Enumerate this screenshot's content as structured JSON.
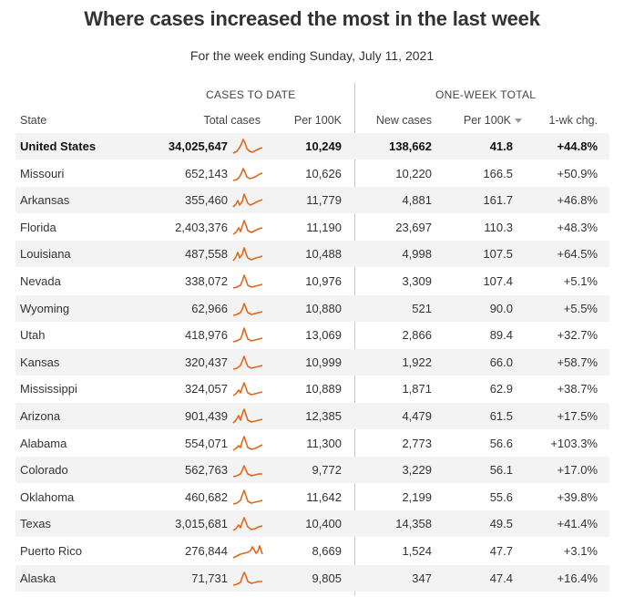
{
  "title": "Where cases increased the most in the last week",
  "subtitle": "For the week ending Sunday, July 11, 2021",
  "group_headers": {
    "cases_to_date": "CASES TO DATE",
    "one_week_total": "ONE-WEEK TOTAL"
  },
  "columns": {
    "state": "State",
    "total_cases": "Total cases",
    "per100k_total": "Per 100K",
    "new_cases": "New cases",
    "per100k_week": "Per 100K",
    "wk_chg": "1-wk chg."
  },
  "accent_color": "#e0671c",
  "chart_data": {
    "type": "table",
    "title": "Where cases increased the most in the last week",
    "subtitle": "For the week ending Sunday, July 11, 2021",
    "columns": [
      "State",
      "Total cases",
      "Per 100K",
      "New cases",
      "Per 100K",
      "1-wk chg."
    ],
    "sorted_by": "One-week Per 100K (descending)",
    "rows": [
      {
        "state": "United States",
        "total_cases": "34,025,647",
        "per100k_total": "10,249",
        "new_cases": "138,662",
        "per100k_week": "41.8",
        "wk_chg": "+44.8%"
      },
      {
        "state": "Missouri",
        "total_cases": "652,143",
        "per100k_total": "10,626",
        "new_cases": "10,220",
        "per100k_week": "166.5",
        "wk_chg": "+50.9%"
      },
      {
        "state": "Arkansas",
        "total_cases": "355,460",
        "per100k_total": "11,779",
        "new_cases": "4,881",
        "per100k_week": "161.7",
        "wk_chg": "+46.8%"
      },
      {
        "state": "Florida",
        "total_cases": "2,403,376",
        "per100k_total": "11,190",
        "new_cases": "23,697",
        "per100k_week": "110.3",
        "wk_chg": "+48.3%"
      },
      {
        "state": "Louisiana",
        "total_cases": "487,558",
        "per100k_total": "10,488",
        "new_cases": "4,998",
        "per100k_week": "107.5",
        "wk_chg": "+64.5%"
      },
      {
        "state": "Nevada",
        "total_cases": "338,072",
        "per100k_total": "10,976",
        "new_cases": "3,309",
        "per100k_week": "107.4",
        "wk_chg": "+5.1%"
      },
      {
        "state": "Wyoming",
        "total_cases": "62,966",
        "per100k_total": "10,880",
        "new_cases": "521",
        "per100k_week": "90.0",
        "wk_chg": "+5.5%"
      },
      {
        "state": "Utah",
        "total_cases": "418,976",
        "per100k_total": "13,069",
        "new_cases": "2,866",
        "per100k_week": "89.4",
        "wk_chg": "+32.7%"
      },
      {
        "state": "Kansas",
        "total_cases": "320,437",
        "per100k_total": "10,999",
        "new_cases": "1,922",
        "per100k_week": "66.0",
        "wk_chg": "+58.7%"
      },
      {
        "state": "Mississippi",
        "total_cases": "324,057",
        "per100k_total": "10,889",
        "new_cases": "1,871",
        "per100k_week": "62.9",
        "wk_chg": "+38.7%"
      },
      {
        "state": "Arizona",
        "total_cases": "901,439",
        "per100k_total": "12,385",
        "new_cases": "4,479",
        "per100k_week": "61.5",
        "wk_chg": "+17.5%"
      },
      {
        "state": "Alabama",
        "total_cases": "554,071",
        "per100k_total": "11,300",
        "new_cases": "2,773",
        "per100k_week": "56.6",
        "wk_chg": "+103.3%"
      },
      {
        "state": "Colorado",
        "total_cases": "562,763",
        "per100k_total": "9,772",
        "new_cases": "3,229",
        "per100k_week": "56.1",
        "wk_chg": "+17.0%"
      },
      {
        "state": "Oklahoma",
        "total_cases": "460,682",
        "per100k_total": "11,642",
        "new_cases": "2,199",
        "per100k_week": "55.6",
        "wk_chg": "+39.8%"
      },
      {
        "state": "Texas",
        "total_cases": "3,015,681",
        "per100k_total": "10,400",
        "new_cases": "14,358",
        "per100k_week": "49.5",
        "wk_chg": "+41.4%"
      },
      {
        "state": "Puerto Rico",
        "total_cases": "276,844",
        "per100k_total": "8,669",
        "new_cases": "1,524",
        "per100k_week": "47.7",
        "wk_chg": "+3.1%"
      },
      {
        "state": "Alaska",
        "total_cases": "71,731",
        "per100k_total": "9,805",
        "new_cases": "347",
        "per100k_week": "47.4",
        "wk_chg": "+16.4%"
      }
    ]
  }
}
